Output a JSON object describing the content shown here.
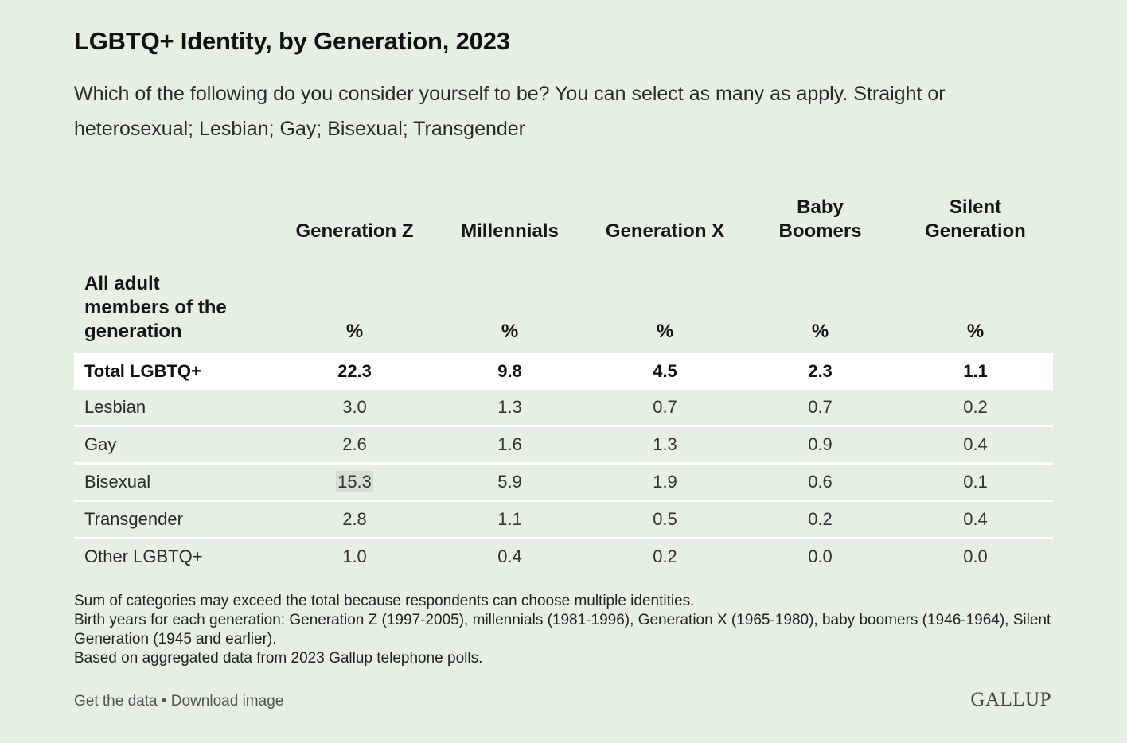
{
  "header": {
    "title": "LGBTQ+ Identity, by Generation, 2023",
    "subtitle": "Which of the following do you consider yourself to be? You can select as many as apply. Straight or heterosexual; Lesbian; Gay; Bisexual; Transgender"
  },
  "chart_data": {
    "type": "table",
    "title": "LGBTQ+ Identity, by Generation, 2023",
    "row_header_label": "All adult members of the generation",
    "columns": [
      "Generation Z",
      "Millennials",
      "Generation X",
      "Baby Boomers",
      "Silent Generation"
    ],
    "unit": "%",
    "rows": [
      {
        "label": "Total LGBTQ+",
        "values": [
          "22.3",
          "9.8",
          "4.5",
          "2.3",
          "1.1"
        ]
      },
      {
        "label": "Lesbian",
        "values": [
          "3.0",
          "1.3",
          "0.7",
          "0.7",
          "0.2"
        ]
      },
      {
        "label": "Gay",
        "values": [
          "2.6",
          "1.6",
          "1.3",
          "0.9",
          "0.4"
        ]
      },
      {
        "label": "Bisexual",
        "values": [
          "15.3",
          "5.9",
          "1.9",
          "0.6",
          "0.1"
        ]
      },
      {
        "label": "Transgender",
        "values": [
          "2.8",
          "1.1",
          "0.5",
          "0.2",
          "0.4"
        ]
      },
      {
        "label": "Other LGBTQ+",
        "values": [
          "1.0",
          "0.4",
          "0.2",
          "0.0",
          "0.0"
        ]
      }
    ]
  },
  "notes": [
    "Sum of categories may exceed the total because respondents can choose multiple identities.",
    "Birth years for each generation: Generation Z (1997-2005), millennials (1981-1996), Generation X (1965-1980), baby boomers (1946-1964), Silent Generation (1945 and earlier).",
    "Based on aggregated data from 2023 Gallup telephone polls."
  ],
  "footer": {
    "get_data": "Get the data",
    "separator": " • ",
    "download": "Download image",
    "logo": "GALLUP"
  },
  "colors": {
    "background": "#e6f0e2",
    "total_row": "#ffffff",
    "highlight": "#d9ddd7"
  }
}
